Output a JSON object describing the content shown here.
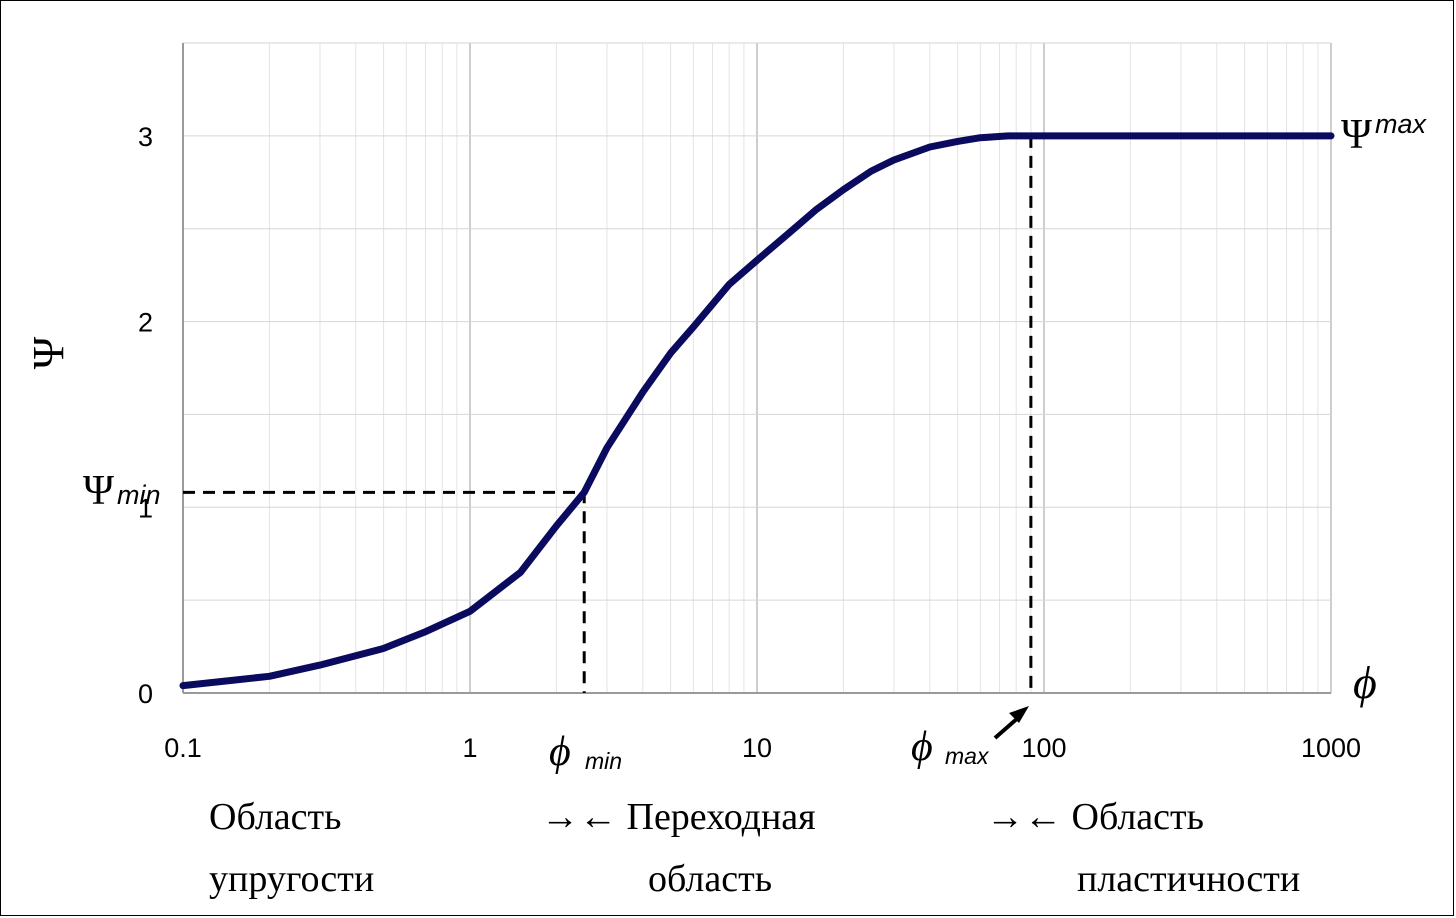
{
  "chart_data": {
    "type": "line",
    "title": "",
    "xlabel": "ϕ",
    "ylabel": "Ψ",
    "x_scale": "log",
    "xlim": [
      0.1,
      1000
    ],
    "ylim": [
      0,
      3.5
    ],
    "x_ticks": [
      "0.1",
      "1",
      "10",
      "100",
      "1000"
    ],
    "y_ticks": [
      "0",
      "1",
      "2",
      "3"
    ],
    "grid": true,
    "color": "#0a0a5e",
    "series": [
      {
        "name": "",
        "x": [
          0.1,
          0.2,
          0.3,
          0.5,
          0.7,
          1.0,
          1.5,
          2.0,
          2.5,
          3.0,
          4.0,
          5.0,
          6.0,
          8.0,
          10,
          13,
          16,
          20,
          25,
          30,
          40,
          50,
          60,
          75,
          90,
          200,
          500,
          1000
        ],
        "y": [
          0.04,
          0.09,
          0.15,
          0.24,
          0.33,
          0.44,
          0.65,
          0.9,
          1.08,
          1.32,
          1.62,
          1.83,
          1.97,
          2.2,
          2.33,
          2.48,
          2.6,
          2.71,
          2.81,
          2.87,
          2.94,
          2.97,
          2.99,
          3.0,
          3.0,
          3.0,
          3.0,
          3.0
        ]
      }
    ],
    "annotations": {
      "psi_max": {
        "symbol": "Ψ",
        "sub": "max",
        "value": 3.0
      },
      "psi_min": {
        "symbol": "Ψ",
        "sub": "min",
        "value": 1.08
      },
      "phi_min": {
        "symbol": "ϕ",
        "sub": "min",
        "value": 2.5
      },
      "phi_max": {
        "symbol": "ϕ",
        "sub": "max",
        "value": 90
      }
    },
    "regions": {
      "elastic": [
        "Область",
        "упругости"
      ],
      "transition": [
        "→← Переходная",
        "область"
      ],
      "plastic": [
        "→← Область",
        "пластичности"
      ]
    }
  }
}
